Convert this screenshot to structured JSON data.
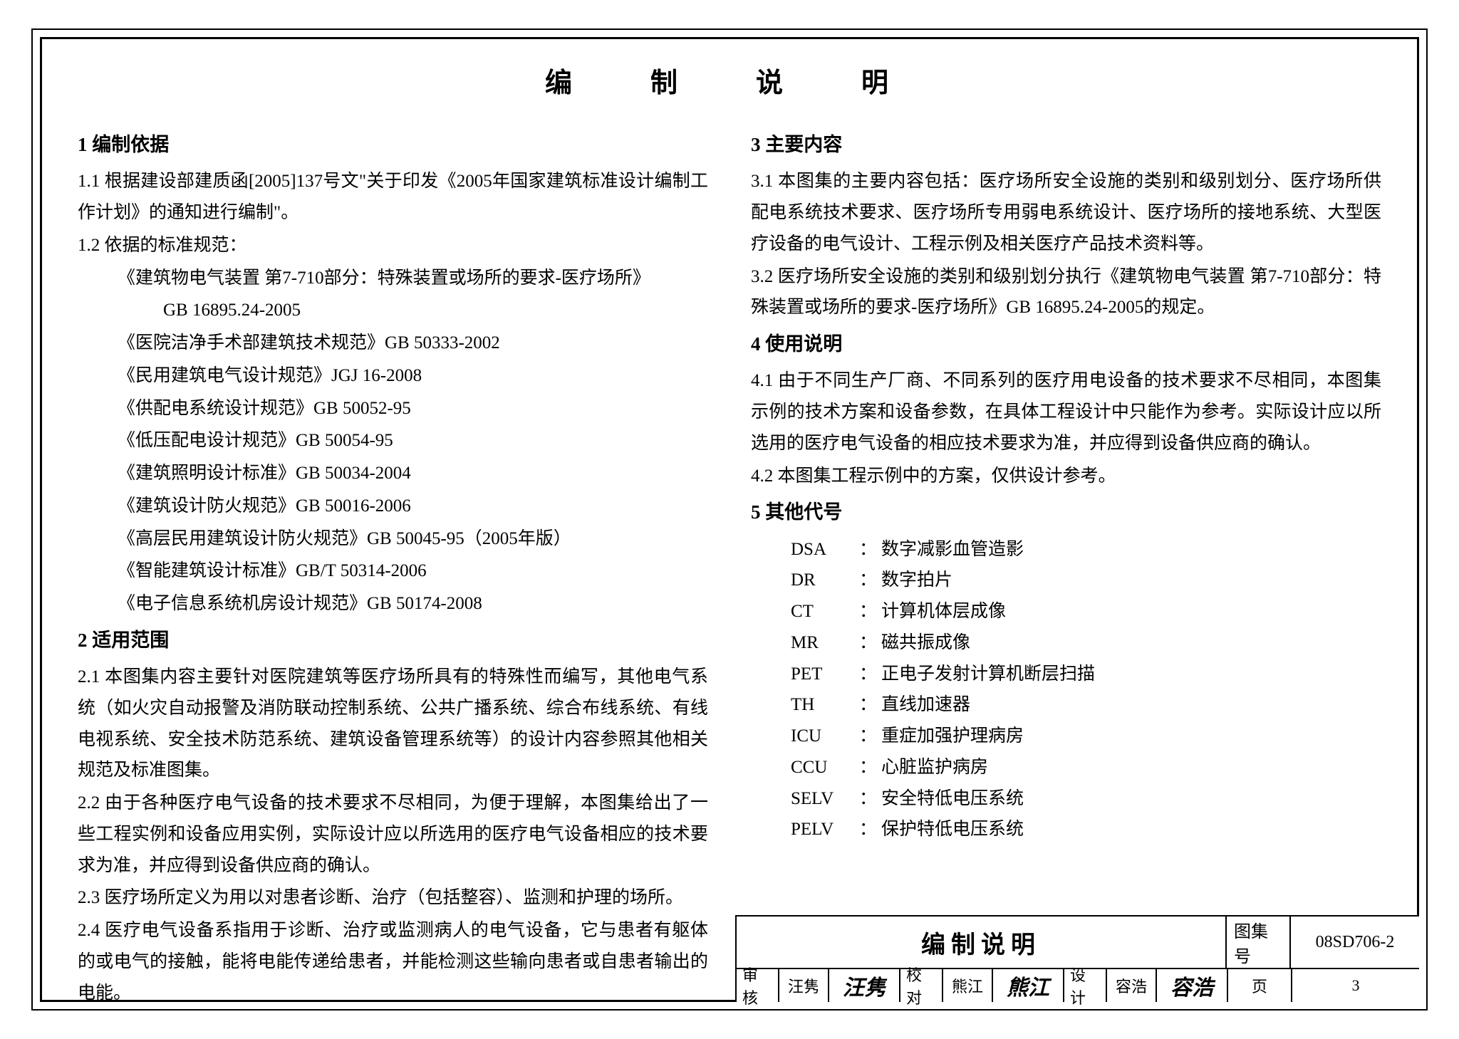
{
  "title": "编　制　说　明",
  "left": {
    "s1_h": "1 编制依据",
    "s1_1": "1.1 根据建设部建质函[2005]137号文\"关于印发《2005年国家建筑标准设计编制工作计划》的通知进行编制\"。",
    "s1_2": "1.2 依据的标准规范：",
    "std1a": "《建筑物电气装置 第7-710部分：特殊装置或场所的要求-医疗场所》",
    "std1b": "GB 16895.24-2005",
    "std2": "《医院洁净手术部建筑技术规范》GB 50333-2002",
    "std3": "《民用建筑电气设计规范》JGJ 16-2008",
    "std4": "《供配电系统设计规范》GB 50052-95",
    "std5": "《低压配电设计规范》GB 50054-95",
    "std6": "《建筑照明设计标准》GB 50034-2004",
    "std7": "《建筑设计防火规范》GB 50016-2006",
    "std8": "《高层民用建筑设计防火规范》GB 50045-95（2005年版）",
    "std9": "《智能建筑设计标准》GB/T 50314-2006",
    "std10": "《电子信息系统机房设计规范》GB 50174-2008",
    "s2_h": "2 适用范围",
    "s2_1": "2.1 本图集内容主要针对医院建筑等医疗场所具有的特殊性而编写，其他电气系统（如火灾自动报警及消防联动控制系统、公共广播系统、综合布线系统、有线电视系统、安全技术防范系统、建筑设备管理系统等）的设计内容参照其他相关规范及标准图集。",
    "s2_2": "2.2 由于各种医疗电气设备的技术要求不尽相同，为便于理解，本图集给出了一些工程实例和设备应用实例，实际设计应以所选用的医疗电气设备相应的技术要求为准，并应得到设备供应商的确认。",
    "s2_3": "2.3 医疗场所定义为用以对患者诊断、治疗（包括整容）、监测和护理的场所。",
    "s2_4": "2.4 医疗电气设备系指用于诊断、治疗或监测病人的电气设备，它与患者有躯体的或电气的接触，能将电能传递给患者，并能检测这些输向患者或自患者输出的电能。"
  },
  "right": {
    "s3_h": "3 主要内容",
    "s3_1": "3.1 本图集的主要内容包括：医疗场所安全设施的类别和级别划分、医疗场所供配电系统技术要求、医疗场所专用弱电系统设计、医疗场所的接地系统、大型医疗设备的电气设计、工程示例及相关医疗产品技术资料等。",
    "s3_2": "3.2 医疗场所安全设施的类别和级别划分执行《建筑物电气装置 第7-710部分：特殊装置或场所的要求-医疗场所》GB 16895.24-2005的规定。",
    "s4_h": "4 使用说明",
    "s4_1": "4.1 由于不同生产厂商、不同系列的医疗用电设备的技术要求不尽相同，本图集示例的技术方案和设备参数，在具体工程设计中只能作为参考。实际设计应以所选用的医疗电气设备的相应技术要求为准，并应得到设备供应商的确认。",
    "s4_2": "4.2 本图集工程示例中的方案，仅供设计参考。",
    "s5_h": "5 其他代号",
    "abbr": [
      {
        "code": "DSA",
        "sep": "：",
        "desc": "数字减影血管造影"
      },
      {
        "code": "DR",
        "sep": "：",
        "desc": "数字拍片"
      },
      {
        "code": "CT",
        "sep": "：",
        "desc": "计算机体层成像"
      },
      {
        "code": "MR",
        "sep": "：",
        "desc": "磁共振成像"
      },
      {
        "code": "PET",
        "sep": "：",
        "desc": "正电子发射计算机断层扫描"
      },
      {
        "code": "TH",
        "sep": "：",
        "desc": "直线加速器"
      },
      {
        "code": "ICU",
        "sep": "：",
        "desc": "重症加强护理病房"
      },
      {
        "code": "CCU",
        "sep": "：",
        "desc": "心脏监护病房"
      },
      {
        "code": "SELV",
        "sep": "：",
        "desc": "安全特低电压系统"
      },
      {
        "code": "PELV",
        "sep": "：",
        "desc": "保护特低电压系统"
      }
    ]
  },
  "cartouche": {
    "title": "编制说明",
    "set_label": "图集号",
    "set_value": "08SD706-2",
    "row2": {
      "review_lbl": "审核",
      "review_name": "汪隽",
      "review_sig": "汪隽",
      "check_lbl": "校对",
      "check_name": "熊江",
      "check_sig": "熊江",
      "design_lbl": "设计",
      "design_name": "容浩",
      "design_sig": "容浩",
      "page_lbl": "页",
      "page_val": "3"
    }
  }
}
